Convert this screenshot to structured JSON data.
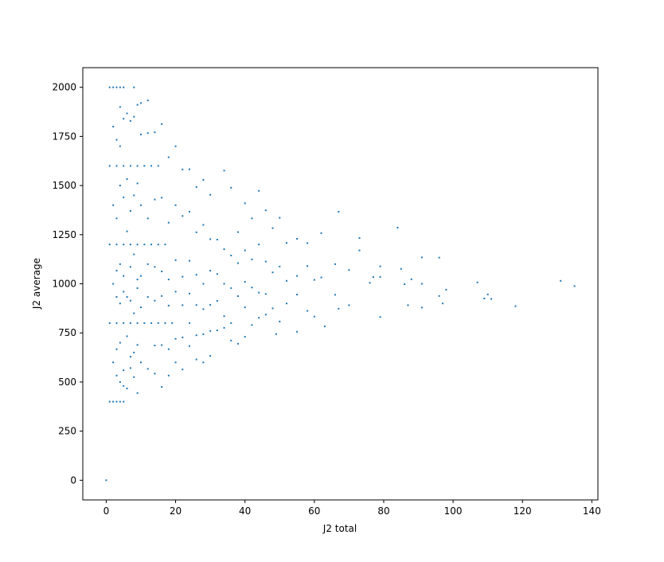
{
  "chart_data": {
    "type": "scatter",
    "x_label": "J2 total",
    "y_label": "J2 average",
    "color": "#1f77b4",
    "xlim": [
      -6.75,
      141.75
    ],
    "ylim": [
      -100,
      2100
    ],
    "xticks": [
      0,
      20,
      40,
      60,
      80,
      100,
      120,
      140
    ],
    "yticks": [
      0,
      250,
      500,
      750,
      1000,
      1250,
      1500,
      1750,
      2000
    ],
    "series": [
      {
        "name": "J2",
        "color": "#1f77b4",
        "x": [
          0,
          1,
          2,
          3,
          4,
          5,
          8,
          1,
          2,
          3,
          4,
          5,
          1,
          3,
          5,
          7,
          9,
          11,
          13,
          15,
          1,
          3,
          5,
          7,
          9,
          11,
          13,
          15,
          17,
          1,
          3,
          5,
          7,
          9,
          11,
          13,
          15,
          17,
          19,
          2,
          2,
          2,
          2,
          3,
          3,
          3,
          3,
          3,
          3,
          4,
          4,
          4,
          4,
          4,
          4,
          4,
          5,
          5,
          5,
          5,
          5,
          5,
          6,
          6,
          6,
          6,
          6,
          6,
          7,
          7,
          7,
          7,
          7,
          7,
          8,
          8,
          8,
          8,
          8,
          8,
          9,
          9,
          9,
          9,
          9,
          9,
          10,
          10,
          10,
          10,
          10,
          10,
          12,
          12,
          12,
          12,
          12,
          12,
          14,
          14,
          14,
          14,
          14,
          14,
          16,
          16,
          16,
          16,
          16,
          16,
          18,
          18,
          18,
          18,
          18,
          18,
          20,
          20,
          20,
          20,
          20,
          20,
          22,
          22,
          22,
          22,
          22,
          22,
          24,
          24,
          24,
          24,
          24,
          24,
          26,
          26,
          26,
          26,
          26,
          26,
          28,
          28,
          28,
          28,
          28,
          28,
          30,
          30,
          30,
          30,
          30,
          30,
          32,
          32,
          32,
          32,
          34,
          34,
          34,
          34,
          34,
          36,
          36,
          36,
          36,
          36,
          38,
          38,
          38,
          38,
          40,
          40,
          40,
          40,
          40,
          42,
          42,
          42,
          42,
          44,
          44,
          44,
          44,
          46,
          46,
          46,
          46,
          48,
          48,
          48,
          50,
          50,
          50,
          49,
          52,
          52,
          52,
          55,
          55,
          55,
          55,
          58,
          58,
          58,
          60,
          60,
          62,
          62,
          63,
          66,
          66,
          67,
          67,
          70,
          70,
          73,
          73,
          76,
          77,
          79,
          79,
          79,
          84,
          85,
          86,
          87,
          88,
          91,
          91,
          91,
          96,
          96,
          97,
          98,
          107,
          109,
          110,
          111,
          118,
          131,
          135
        ],
        "values": [
          0,
          2000,
          2000,
          2000,
          2000,
          2000,
          2000,
          400,
          400,
          400,
          400,
          400,
          1600,
          1600,
          1600,
          1600,
          1600,
          1600,
          1600,
          1600,
          1200,
          1200,
          1200,
          1200,
          1200,
          1200,
          1200,
          1200,
          1200,
          800,
          800,
          800,
          800,
          800,
          800,
          800,
          800,
          800,
          800,
          1800,
          1400,
          1000,
          600,
          1733,
          1333,
          1067,
          933,
          667,
          533,
          1900,
          1700,
          1500,
          1100,
          900,
          700,
          500,
          1840,
          1440,
          1040,
          960,
          560,
          480,
          1867,
          1533,
          1267,
          933,
          733,
          467,
          1829,
          1371,
          1086,
          914,
          629,
          571,
          1850,
          1450,
          1150,
          850,
          650,
          525,
          1911,
          1511,
          1022,
          978,
          689,
          444,
          1920,
          1760,
          1400,
          1040,
          880,
          600,
          1933,
          1767,
          1333,
          1100,
          933,
          567,
          1771,
          1429,
          1086,
          914,
          686,
          543,
          1813,
          1438,
          1063,
          938,
          688,
          475,
          1644,
          1311,
          1022,
          889,
          667,
          533,
          1700,
          1400,
          1120,
          960,
          720,
          600,
          1582,
          1345,
          1036,
          891,
          727,
          564,
          1583,
          1367,
          1117,
          950,
          800,
          683,
          1492,
          1262,
          1046,
          892,
          738,
          615,
          1529,
          1300,
          1000,
          871,
          743,
          600,
          1453,
          1227,
          1067,
          893,
          760,
          633,
          1225,
          1050,
          913,
          763,
          1576,
          1176,
          1000,
          835,
          776,
          1489,
          1144,
          978,
          800,
          711,
          1263,
          1105,
          937,
          695,
          1410,
          1170,
          1010,
          880,
          730,
          1333,
          1124,
          981,
          790,
          1473,
          1200,
          955,
          827,
          1374,
          1113,
          948,
          843,
          1283,
          1058,
          875,
          1336,
          1088,
          808,
          744,
          1208,
          1015,
          900,
          1229,
          1040,
          945,
          756,
          1207,
          1090,
          862,
          1020,
          833,
          1258,
          1032,
          783,
          1100,
          944,
          1367,
          873,
          1070,
          891,
          1233,
          1170,
          1005,
          1034,
          1089,
          831,
          1035,
          1286,
          1076,
          998,
          891,
          1023,
          1134,
          1000,
          879,
          1133,
          938,
          900,
          970,
          1007,
          925,
          946,
          923,
          886,
          1015,
          988
        ]
      }
    ]
  }
}
